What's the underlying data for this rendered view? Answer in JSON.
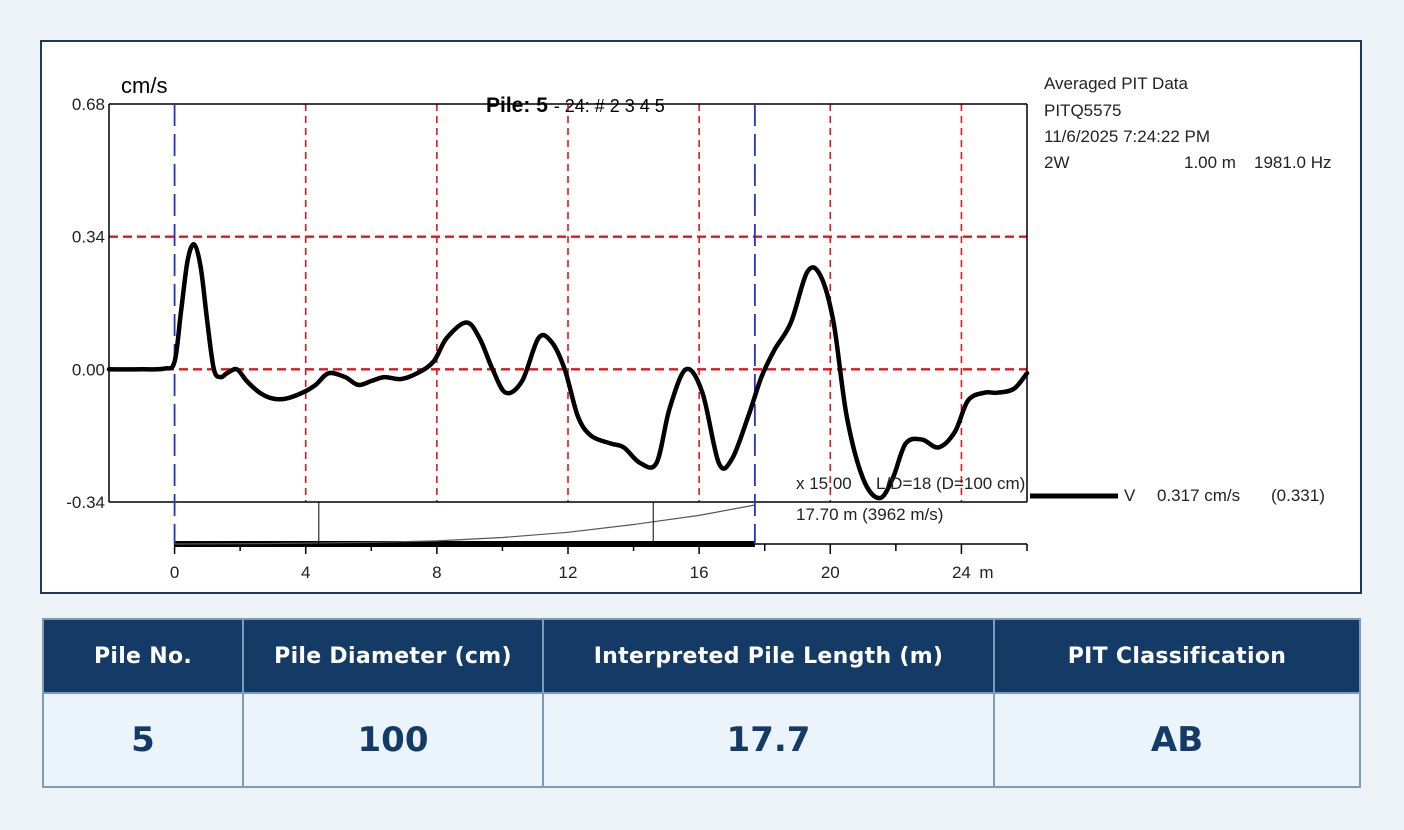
{
  "chart_data": {
    "type": "line",
    "title_prefix": "Pile:",
    "title_pile": "5",
    "title_suffix": "- 24: # 2 3 4 5",
    "ylabel": "cm/s",
    "xunit": "m",
    "ylim": [
      -0.34,
      0.68
    ],
    "xlim": [
      -2,
      26
    ],
    "yticks": [
      {
        "value": 0.68,
        "label": "0.68"
      },
      {
        "value": 0.34,
        "label": "0.34"
      },
      {
        "value": 0.0,
        "label": "0.00"
      },
      {
        "value": -0.34,
        "label": "-0.34"
      }
    ],
    "xticks": [
      {
        "value": 0,
        "label": "0"
      },
      {
        "value": 4,
        "label": "4"
      },
      {
        "value": 8,
        "label": "8"
      },
      {
        "value": 12,
        "label": "12"
      },
      {
        "value": 16,
        "label": "16"
      },
      {
        "value": 20,
        "label": "20"
      },
      {
        "value": 24,
        "label": "24"
      }
    ],
    "grid_x": [
      4,
      8,
      12,
      16,
      20,
      24
    ],
    "grid_y": [
      0.34,
      0.0
    ],
    "markers_x": [
      0,
      17.7
    ],
    "series": [
      {
        "x": [
          -2,
          -1,
          -0.3,
          0,
          0.2,
          0.4,
          0.6,
          0.8,
          1.0,
          1.2,
          1.4,
          1.6,
          1.9,
          2.2,
          2.6,
          3.0,
          3.4,
          3.9,
          4.3,
          4.7,
          5.2,
          5.6,
          6.0,
          6.4,
          6.9,
          7.4,
          7.9,
          8.3,
          8.9,
          9.3,
          9.7,
          10.1,
          10.6,
          11.1,
          11.5,
          11.9,
          12.3,
          12.7,
          13.3,
          13.7,
          14.2,
          14.7,
          15.1,
          15.6,
          16.1,
          16.6,
          17.0,
          17.5,
          17.9,
          18.3,
          18.8,
          19.3,
          19.7,
          20.1,
          20.5,
          21.0,
          21.5,
          21.9,
          22.3,
          22.8,
          23.3,
          23.8,
          24.2,
          24.7,
          25.1,
          25.6,
          26.0
        ],
        "y": [
          0,
          0,
          0.002,
          0.02,
          0.15,
          0.28,
          0.32,
          0.26,
          0.12,
          0.0,
          -0.02,
          -0.01,
          0.0,
          -0.03,
          -0.06,
          -0.075,
          -0.075,
          -0.06,
          -0.04,
          -0.01,
          -0.02,
          -0.04,
          -0.03,
          -0.02,
          -0.025,
          -0.01,
          0.02,
          0.08,
          0.12,
          0.08,
          0.0,
          -0.06,
          -0.03,
          0.08,
          0.07,
          0.0,
          -0.12,
          -0.17,
          -0.19,
          -0.2,
          -0.24,
          -0.24,
          -0.1,
          0.0,
          -0.06,
          -0.24,
          -0.23,
          -0.12,
          -0.02,
          0.05,
          0.12,
          0.25,
          0.24,
          0.12,
          -0.12,
          -0.28,
          -0.33,
          -0.28,
          -0.19,
          -0.18,
          -0.2,
          -0.16,
          -0.08,
          -0.06,
          -0.06,
          -0.05,
          -0.01
        ]
      }
    ],
    "amp_curve": {
      "x": [
        0,
        3,
        6,
        8,
        10,
        12,
        14,
        16,
        17.7
      ],
      "y": [
        0,
        0.002,
        0.006,
        0.012,
        0.025,
        0.045,
        0.075,
        0.11,
        0.15
      ]
    },
    "amp_ticks": [
      4.4,
      14.6
    ]
  },
  "info": {
    "line1": "Averaged PIT Data",
    "line2": "PITQ5575",
    "line3": "11/6/2025 7:24:22 PM",
    "line4_left": "2W",
    "line4_mid": "1.00 m",
    "line4_right": "1981.0 Hz"
  },
  "annotations": {
    "amp_text": "x 15.00",
    "ld_text": "L/D=18 (D=100 cm)",
    "length_text": "17.70 m (3962 m/s)",
    "v_label": "V",
    "v_value": "0.317 cm/s",
    "v_paren": "(0.331)"
  },
  "table": {
    "headers": [
      "Pile No.",
      "Pile Diameter (cm)",
      "Interpreted Pile Length (m)",
      "PIT Classification"
    ],
    "row": [
      "5",
      "100",
      "17.7",
      "AB"
    ]
  }
}
